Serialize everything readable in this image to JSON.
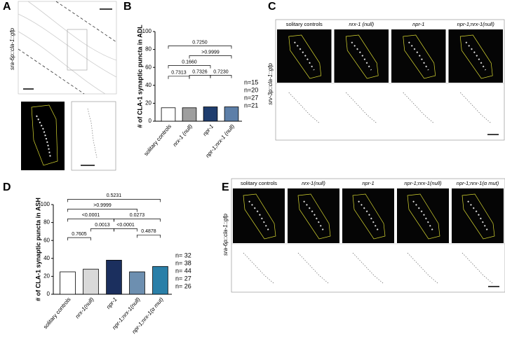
{
  "panels": {
    "letters": [
      "A",
      "B",
      "C",
      "D",
      "E"
    ],
    "panel_a": {
      "label": "sra-6p::cla-1::gfp"
    },
    "panel_c": {
      "label": "srv-3p::cla-1::gfp",
      "columns": [
        "solitary controls",
        "nrx-1 (null)",
        "npr-1",
        "npr-1;nrx-1(null)"
      ]
    },
    "panel_e": {
      "label": "sra-6p::cla-1::gfp",
      "columns": [
        "solitary controls",
        "nrx-1(null)",
        "npr-1",
        "npr-1;nrx-1(null)",
        "npr-1;nrx-1(α mut)"
      ]
    }
  },
  "chart_data": [
    {
      "type": "bar",
      "ylabel": "# of CLA-1 synaptic puncta in ADL",
      "categories": [
        "solitary controls",
        "nrx-1 (null)",
        "npr-1",
        "npr-1;nrx-1 (null)"
      ],
      "values": [
        15,
        15,
        16,
        16
      ],
      "colors": [
        "#ffffff",
        "#9e9e9e",
        "#1f3d6e",
        "#5d7fa8"
      ],
      "ylim": [
        0,
        100
      ],
      "yticks": [
        0,
        20,
        40,
        60,
        80,
        100
      ],
      "comparisons": [
        {
          "pair": [
            0,
            1
          ],
          "label": "0.7313",
          "color": "#000000"
        },
        {
          "pair": [
            1,
            2
          ],
          "label": "0.7326",
          "color": "#000000"
        },
        {
          "pair": [
            2,
            3
          ],
          "label": "0.7230",
          "color": "#000000"
        },
        {
          "pair": [
            0,
            2
          ],
          "label": "0.1660",
          "color": "#000000"
        },
        {
          "pair": [
            1,
            3
          ],
          "label": ">0.9999",
          "color": "#000000"
        },
        {
          "pair": [
            0,
            3
          ],
          "label": "0.7250",
          "color": "#000000"
        }
      ],
      "n_labels": [
        "n=15",
        "n=20",
        "n=27",
        "n=21"
      ],
      "n_colors": [
        "#000000",
        "#9a9a9a",
        "#1f3d6e",
        "#4a78a8"
      ]
    },
    {
      "type": "bar",
      "ylabel": "# of CLA-1 synaptic puncta in ASH",
      "categories": [
        "solitary controls",
        "nrx-1(null)",
        "npr-1",
        "npr-1;nrx-1(null)",
        "npr-1;nrx-1(α mut)"
      ],
      "values": [
        25,
        28,
        38,
        25,
        31
      ],
      "colors": [
        "#ffffff",
        "#d9d9d9",
        "#1b2f5e",
        "#6d8fb0",
        "#2a7fa8"
      ],
      "ylim": [
        0,
        100
      ],
      "yticks": [
        0,
        20,
        40,
        60,
        80,
        100
      ],
      "comparisons": [
        {
          "pair": [
            0,
            1
          ],
          "label": "0.7605",
          "color": "#000000"
        },
        {
          "pair": [
            1,
            2
          ],
          "label": "0.0013",
          "color": "#e00000"
        },
        {
          "pair": [
            2,
            3
          ],
          "label": "<0.0001",
          "color": "#e00000"
        },
        {
          "pair": [
            3,
            4
          ],
          "label": "0.4878",
          "color": "#000000"
        },
        {
          "pair": [
            0,
            2
          ],
          "label": "<0.0001",
          "color": "#e00000"
        },
        {
          "pair": [
            2,
            4
          ],
          "label": "0.0273",
          "color": "#e00000"
        },
        {
          "pair": [
            0,
            3
          ],
          "label": ">0.9999",
          "color": "#000000"
        },
        {
          "pair": [
            0,
            4
          ],
          "label": "0.5231",
          "color": "#000000"
        }
      ],
      "n_labels": [
        "n= 32",
        "n= 38",
        "n= 44",
        "n= 27",
        "n= 26"
      ],
      "n_colors": [
        "#000000",
        "#cccccc",
        "#1b2f5e",
        "#6d8fb0",
        "#2a7fa8"
      ]
    }
  ]
}
